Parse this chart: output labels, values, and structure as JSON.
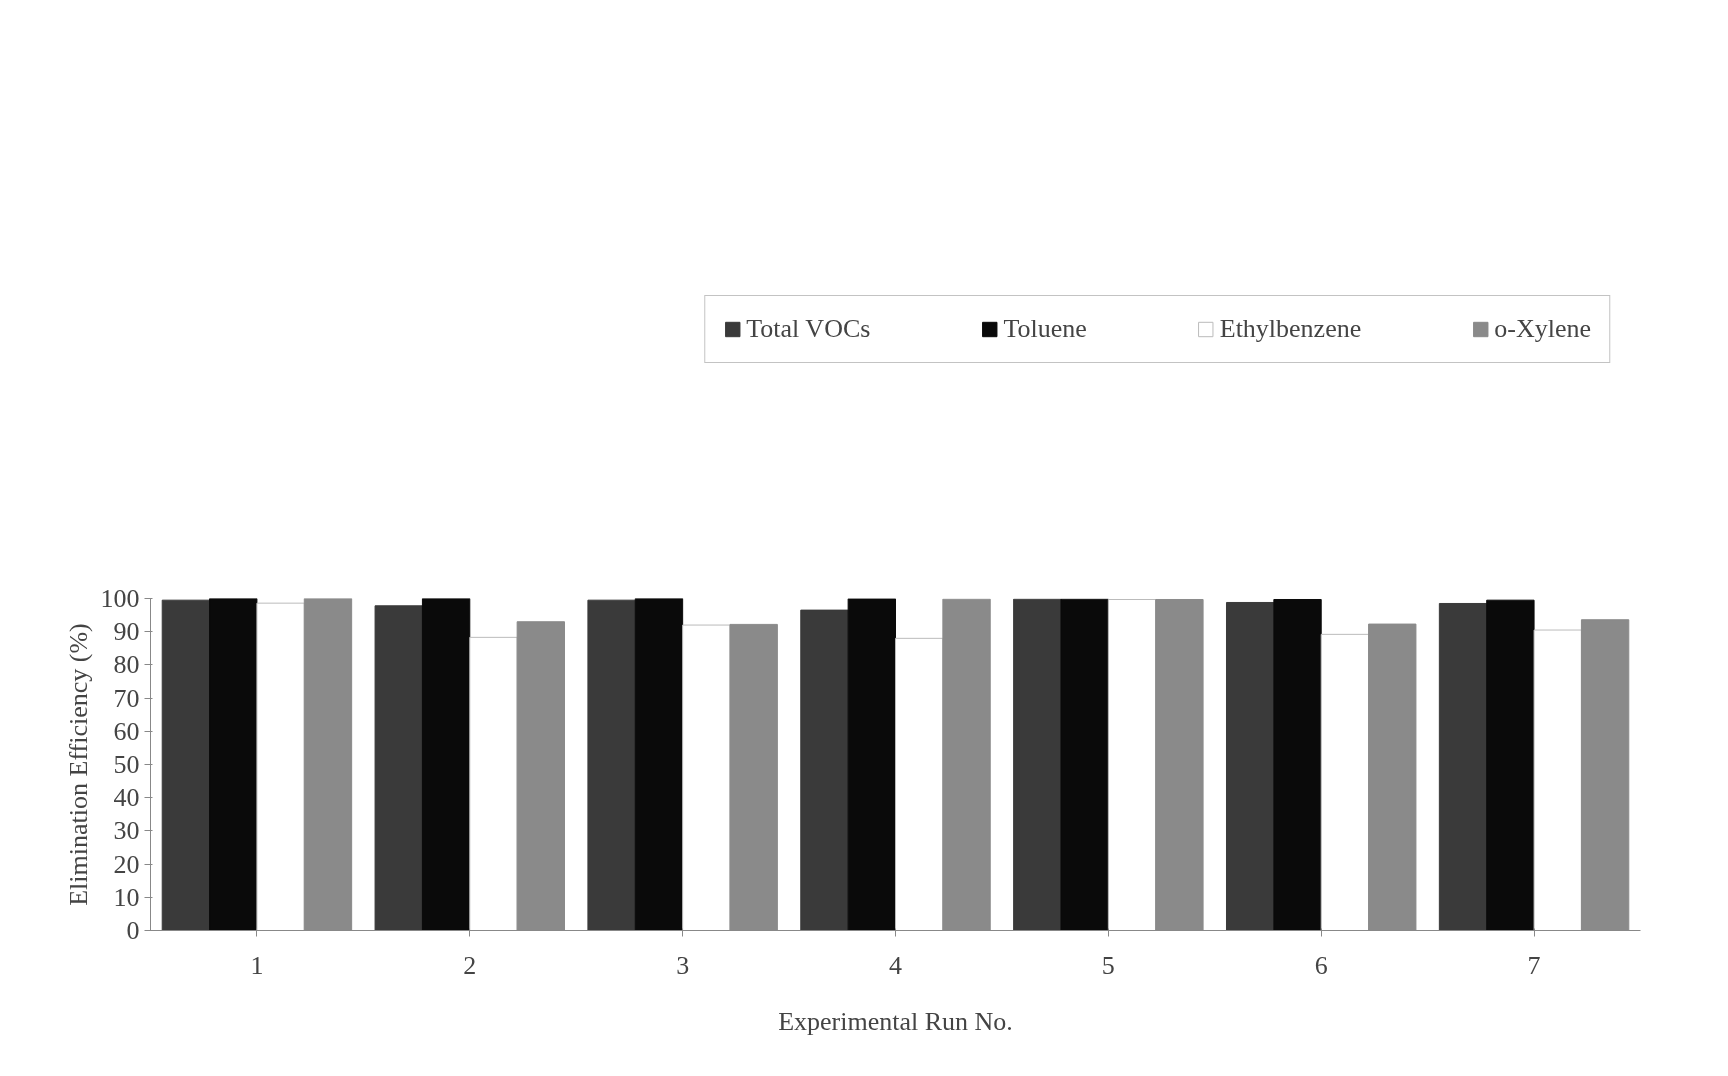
{
  "chart_data": {
    "type": "bar",
    "xlabel": "Experimental Run No.",
    "ylabel": "Elimination Efficiency (%)",
    "categories": [
      "1",
      "2",
      "3",
      "4",
      "5",
      "6",
      "7"
    ],
    "series": [
      {
        "name": "Total VOCs",
        "color": "#3a3a3a",
        "values": [
          99.5,
          97.8,
          99.5,
          96.5,
          99.8,
          98.8,
          98.5
        ]
      },
      {
        "name": "Toluene",
        "color": "#0a0a0a",
        "values": [
          100,
          100,
          100,
          99.9,
          99.8,
          99.7,
          99.5
        ]
      },
      {
        "name": "Ethylbenzene",
        "color": "#ffffff",
        "values": [
          98.6,
          88.3,
          92.0,
          88.0,
          99.7,
          89.2,
          90.5
        ]
      },
      {
        "name": "o-Xylene",
        "color": "#8a8a8a",
        "values": [
          100,
          93.0,
          92.2,
          99.8,
          99.7,
          92.3,
          93.6
        ]
      }
    ],
    "ylim": [
      0,
      100
    ],
    "yticks": [
      0,
      10,
      20,
      30,
      40,
      50,
      60,
      70,
      80,
      90,
      100
    ],
    "grid": false,
    "legend": "top"
  }
}
